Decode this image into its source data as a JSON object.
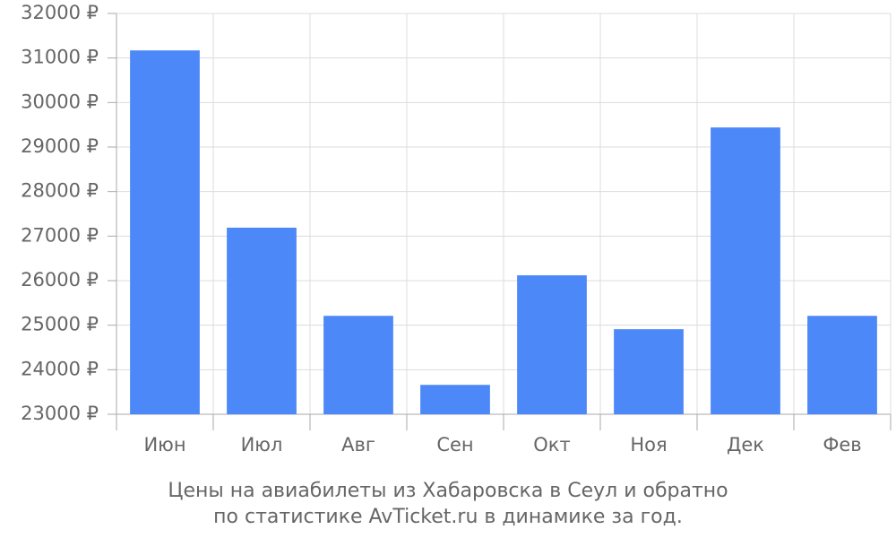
{
  "chart_data": {
    "type": "bar",
    "title": [
      "Цены на авиабилеты из Хабаровска в Сеул и обратно",
      "по статистике AvTicket.ru в динамике за год."
    ],
    "categories": [
      "Июн",
      "Июл",
      "Авг",
      "Сен",
      "Окт",
      "Ноя",
      "Дек",
      "Фев"
    ],
    "values": [
      31170,
      27190,
      25210,
      23660,
      26120,
      24910,
      29440,
      25210
    ],
    "color": "#4d88f9",
    "ylim": [
      23000,
      32000
    ],
    "yticks": [
      {
        "value": 23000,
        "label": "23000 ₽"
      },
      {
        "value": 24000,
        "label": "24000 ₽"
      },
      {
        "value": 25000,
        "label": "25000 ₽"
      },
      {
        "value": 26000,
        "label": "26000 ₽"
      },
      {
        "value": 27000,
        "label": "27000 ₽"
      },
      {
        "value": 28000,
        "label": "28000 ₽"
      },
      {
        "value": 29000,
        "label": "29000 ₽"
      },
      {
        "value": 30000,
        "label": "30000 ₽"
      },
      {
        "value": 31000,
        "label": "31000 ₽"
      },
      {
        "value": 32000,
        "label": "32000 ₽"
      }
    ],
    "grid": true
  }
}
